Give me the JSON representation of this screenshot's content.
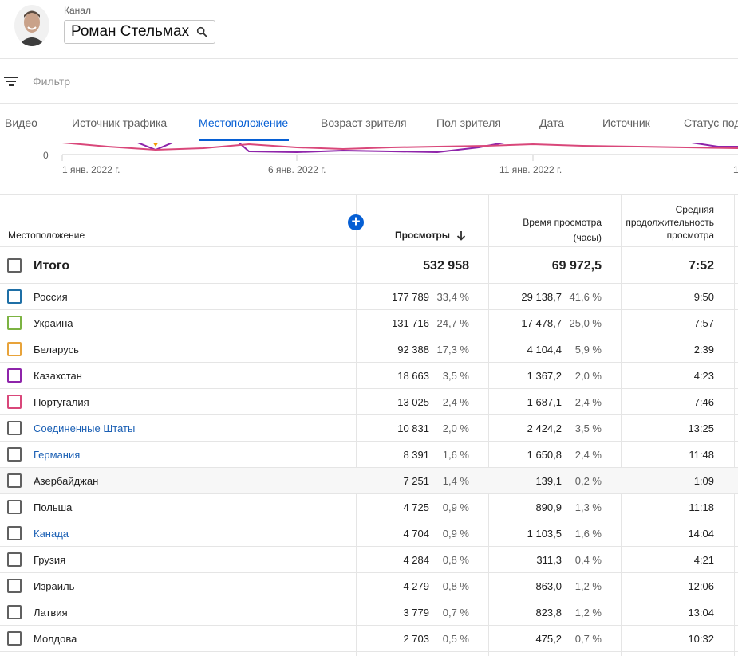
{
  "header": {
    "channel_label": "Канал",
    "channel_name": "Роман Стельмах"
  },
  "filter": {
    "placeholder": "Фильтр"
  },
  "tabs": [
    {
      "label": "Видео"
    },
    {
      "label": "Источник трафика"
    },
    {
      "label": "Местоположение",
      "active": true
    },
    {
      "label": "Возраст зрителя"
    },
    {
      "label": "Пол зрителя"
    },
    {
      "label": "Дата"
    },
    {
      "label": "Источник"
    },
    {
      "label": "Статус под"
    }
  ],
  "chart": {
    "y_tick": "0",
    "x_ticks": [
      "1 янв. 2022 г.",
      "6 янв. 2022 г.",
      "11 янв. 2022 г.",
      "1"
    ],
    "colors": {
      "red": "#d9477a",
      "purple": "#8e24aa",
      "orange": "#f29900"
    }
  },
  "table": {
    "headers": {
      "location": "Местоположение",
      "views": "Просмотры",
      "watch_time_line1": "Время просмотра",
      "watch_time_line2": "(часы)",
      "avg_line1": "Средняя",
      "avg_line2": "продолжительность",
      "avg_line3": "просмотра"
    },
    "total": {
      "name": "Итого",
      "views": "532 958",
      "watch": "69 972,5",
      "avg": "7:52"
    },
    "rows": [
      {
        "name": "Россия",
        "views": "177 789",
        "views_pct": "33,4 %",
        "watch": "29 138,7",
        "watch_pct": "41,6 %",
        "avg": "9:50",
        "color": "#1e6fa6",
        "link": false
      },
      {
        "name": "Украина",
        "views": "131 716",
        "views_pct": "24,7 %",
        "watch": "17 478,7",
        "watch_pct": "25,0 %",
        "avg": "7:57",
        "color": "#7cb342",
        "link": false
      },
      {
        "name": "Беларусь",
        "views": "92 388",
        "views_pct": "17,3 %",
        "watch": "4 104,4",
        "watch_pct": "5,9 %",
        "avg": "2:39",
        "color": "#e8a33a",
        "link": false
      },
      {
        "name": "Казахстан",
        "views": "18 663",
        "views_pct": "3,5 %",
        "watch": "1 367,2",
        "watch_pct": "2,0 %",
        "avg": "4:23",
        "color": "#8e24aa",
        "link": false
      },
      {
        "name": "Португалия",
        "views": "13 025",
        "views_pct": "2,4 %",
        "watch": "1 687,1",
        "watch_pct": "2,4 %",
        "avg": "7:46",
        "color": "#d9477a",
        "link": false
      },
      {
        "name": "Соединенные Штаты",
        "views": "10 831",
        "views_pct": "2,0 %",
        "watch": "2 424,2",
        "watch_pct": "3,5 %",
        "avg": "13:25",
        "color": "#606060",
        "link": true
      },
      {
        "name": "Германия",
        "views": "8 391",
        "views_pct": "1,6 %",
        "watch": "1 650,8",
        "watch_pct": "2,4 %",
        "avg": "11:48",
        "color": "#606060",
        "link": true
      },
      {
        "name": "Азербайджан",
        "views": "7 251",
        "views_pct": "1,4 %",
        "watch": "139,1",
        "watch_pct": "0,2 %",
        "avg": "1:09",
        "color": "#606060",
        "link": false
      },
      {
        "name": "Польша",
        "views": "4 725",
        "views_pct": "0,9 %",
        "watch": "890,9",
        "watch_pct": "1,3 %",
        "avg": "11:18",
        "color": "#606060",
        "link": false
      },
      {
        "name": "Канада",
        "views": "4 704",
        "views_pct": "0,9 %",
        "watch": "1 103,5",
        "watch_pct": "1,6 %",
        "avg": "14:04",
        "color": "#606060",
        "link": true
      },
      {
        "name": "Грузия",
        "views": "4 284",
        "views_pct": "0,8 %",
        "watch": "311,3",
        "watch_pct": "0,4 %",
        "avg": "4:21",
        "color": "#606060",
        "link": false
      },
      {
        "name": "Израиль",
        "views": "4 279",
        "views_pct": "0,8 %",
        "watch": "863,0",
        "watch_pct": "1,2 %",
        "avg": "12:06",
        "color": "#606060",
        "link": false
      },
      {
        "name": "Латвия",
        "views": "3 779",
        "views_pct": "0,7 %",
        "watch": "823,8",
        "watch_pct": "1,2 %",
        "avg": "13:04",
        "color": "#606060",
        "link": false
      },
      {
        "name": "Молдова",
        "views": "2 703",
        "views_pct": "0,5 %",
        "watch": "475,2",
        "watch_pct": "0,7 %",
        "avg": "10:32",
        "color": "#606060",
        "link": false
      }
    ]
  }
}
